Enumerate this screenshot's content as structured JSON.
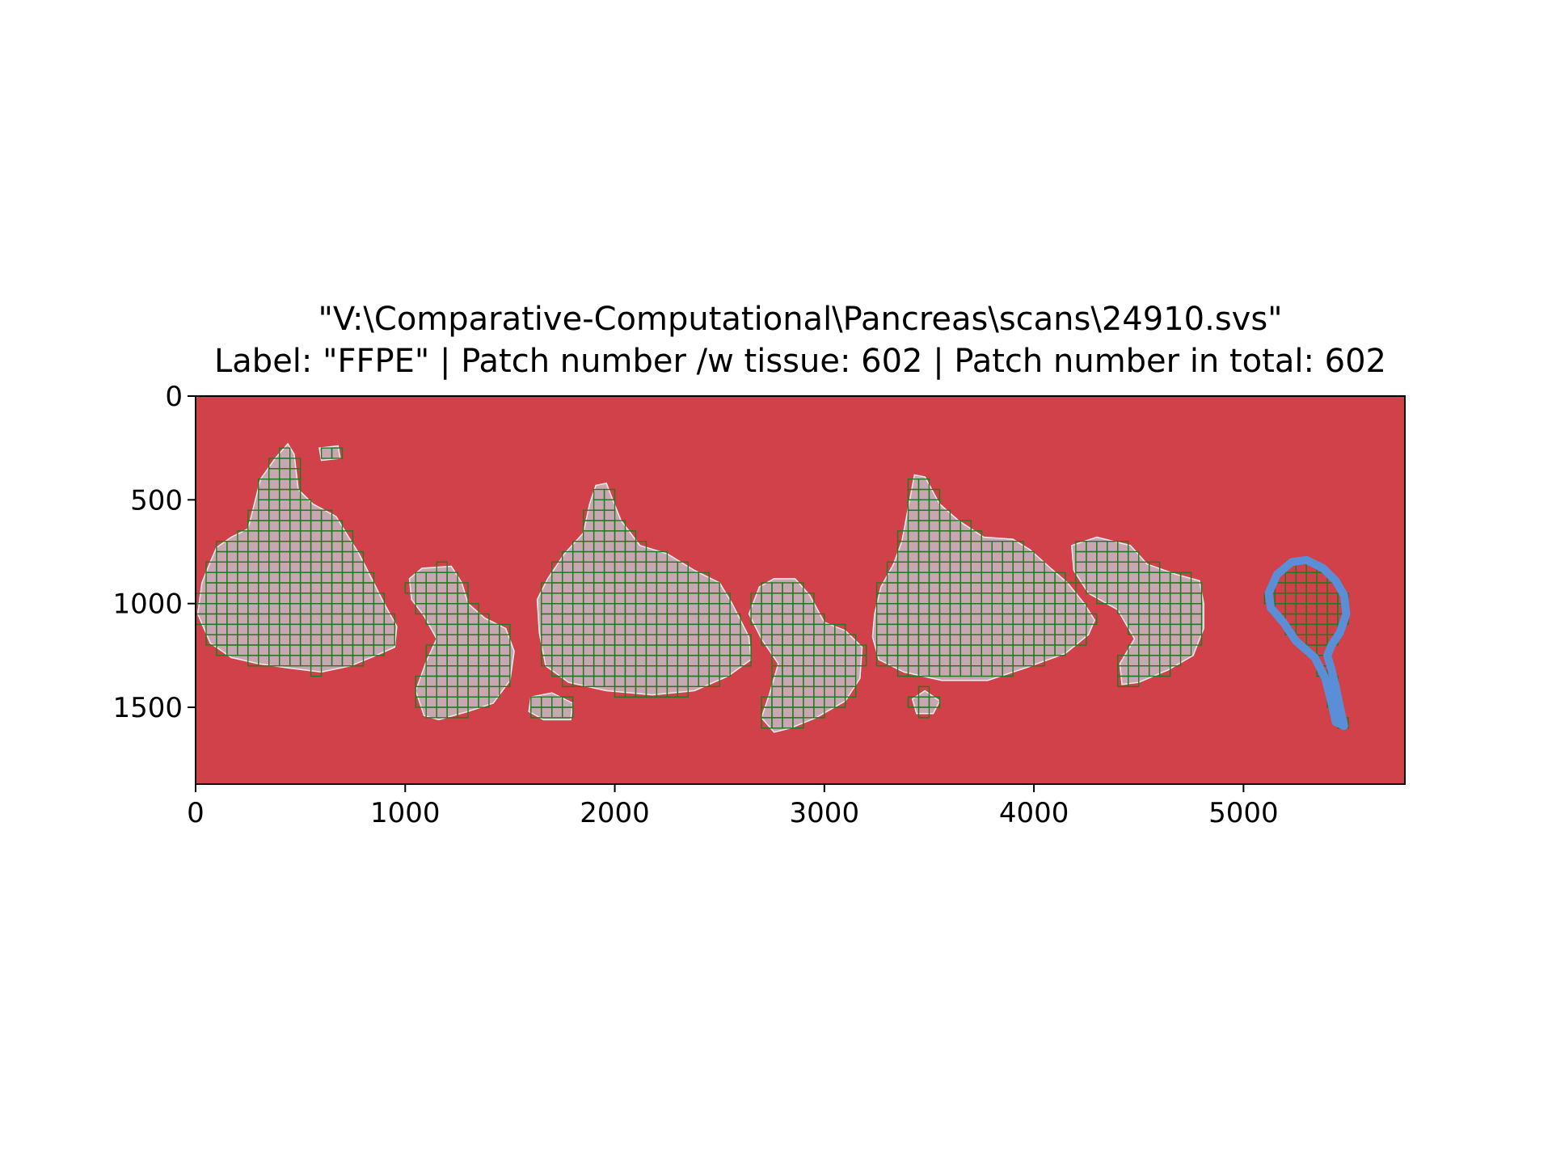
{
  "chart_data": {
    "type": "heatmap",
    "title_lines": [
      "\"V:\\Comparative-Computational\\Pancreas\\scans\\24910.svs\"",
      "Label: \"FFPE\" | Patch number /w tissue: 602 | Patch number in total: 602"
    ],
    "xlim": [
      0,
      5770
    ],
    "ylim": [
      1870,
      0
    ],
    "x_ticks": [
      0,
      1000,
      2000,
      3000,
      4000,
      5000
    ],
    "y_ticks": [
      0,
      500,
      1000,
      1500
    ],
    "xlabel": "",
    "ylabel": "",
    "grid": false,
    "patch_size": 50,
    "patches_with_tissue": 602,
    "patches_total": 602,
    "colors": {
      "background": "#d0414a",
      "tissue": "#c9a7b2",
      "tissue_edge": "#eeeeee",
      "patch_outline": "#1f7a1f",
      "marker_ink": "#5a8fd8",
      "axis": "#000000"
    },
    "tissue_regions": [
      {
        "name": "section-1",
        "points": [
          [
            70,
            800
          ],
          [
            100,
            730
          ],
          [
            170,
            680
          ],
          [
            250,
            640
          ],
          [
            280,
            520
          ],
          [
            310,
            400
          ],
          [
            380,
            300
          ],
          [
            440,
            230
          ],
          [
            470,
            280
          ],
          [
            490,
            450
          ],
          [
            560,
            520
          ],
          [
            670,
            580
          ],
          [
            730,
            680
          ],
          [
            780,
            760
          ],
          [
            840,
            880
          ],
          [
            900,
            1000
          ],
          [
            960,
            1110
          ],
          [
            950,
            1210
          ],
          [
            860,
            1250
          ],
          [
            740,
            1300
          ],
          [
            600,
            1330
          ],
          [
            440,
            1310
          ],
          [
            300,
            1290
          ],
          [
            170,
            1260
          ],
          [
            70,
            1190
          ],
          [
            10,
            1050
          ],
          [
            30,
            900
          ]
        ]
      },
      {
        "name": "section-1-nub",
        "points": [
          [
            590,
            250
          ],
          [
            680,
            240
          ],
          [
            690,
            300
          ],
          [
            600,
            310
          ]
        ]
      },
      {
        "name": "section-2",
        "points": [
          [
            1020,
            880
          ],
          [
            1080,
            830
          ],
          [
            1220,
            820
          ],
          [
            1270,
            900
          ],
          [
            1300,
            1000
          ],
          [
            1380,
            1070
          ],
          [
            1480,
            1120
          ],
          [
            1520,
            1230
          ],
          [
            1500,
            1370
          ],
          [
            1420,
            1480
          ],
          [
            1300,
            1520
          ],
          [
            1160,
            1560
          ],
          [
            1090,
            1540
          ],
          [
            1050,
            1420
          ],
          [
            1100,
            1280
          ],
          [
            1150,
            1170
          ],
          [
            1090,
            1060
          ],
          [
            1030,
            980
          ]
        ]
      },
      {
        "name": "section-3",
        "points": [
          [
            1630,
            980
          ],
          [
            1680,
            880
          ],
          [
            1760,
            760
          ],
          [
            1850,
            660
          ],
          [
            1880,
            520
          ],
          [
            1910,
            430
          ],
          [
            1960,
            420
          ],
          [
            1990,
            500
          ],
          [
            2030,
            600
          ],
          [
            2120,
            720
          ],
          [
            2250,
            760
          ],
          [
            2380,
            840
          ],
          [
            2500,
            900
          ],
          [
            2560,
            1000
          ],
          [
            2640,
            1160
          ],
          [
            2650,
            1270
          ],
          [
            2540,
            1350
          ],
          [
            2380,
            1420
          ],
          [
            2180,
            1440
          ],
          [
            1960,
            1420
          ],
          [
            1780,
            1380
          ],
          [
            1670,
            1300
          ],
          [
            1640,
            1140
          ]
        ]
      },
      {
        "name": "section-3-satellite",
        "points": [
          [
            1600,
            1450
          ],
          [
            1700,
            1430
          ],
          [
            1800,
            1480
          ],
          [
            1790,
            1560
          ],
          [
            1660,
            1560
          ],
          [
            1590,
            1520
          ]
        ]
      },
      {
        "name": "section-4",
        "points": [
          [
            2640,
            1050
          ],
          [
            2690,
            920
          ],
          [
            2760,
            880
          ],
          [
            2860,
            880
          ],
          [
            2930,
            960
          ],
          [
            3000,
            1090
          ],
          [
            3100,
            1130
          ],
          [
            3180,
            1210
          ],
          [
            3170,
            1360
          ],
          [
            3100,
            1470
          ],
          [
            2960,
            1550
          ],
          [
            2840,
            1600
          ],
          [
            2760,
            1620
          ],
          [
            2700,
            1550
          ],
          [
            2740,
            1430
          ],
          [
            2780,
            1290
          ],
          [
            2700,
            1170
          ]
        ]
      },
      {
        "name": "section-5",
        "points": [
          [
            3240,
            1050
          ],
          [
            3270,
            920
          ],
          [
            3330,
            810
          ],
          [
            3370,
            700
          ],
          [
            3400,
            540
          ],
          [
            3430,
            380
          ],
          [
            3480,
            390
          ],
          [
            3550,
            520
          ],
          [
            3640,
            600
          ],
          [
            3760,
            680
          ],
          [
            3900,
            690
          ],
          [
            3980,
            740
          ],
          [
            4080,
            830
          ],
          [
            4160,
            900
          ],
          [
            4240,
            1000
          ],
          [
            4290,
            1080
          ],
          [
            4260,
            1150
          ],
          [
            4150,
            1240
          ],
          [
            3960,
            1310
          ],
          [
            3780,
            1370
          ],
          [
            3560,
            1370
          ],
          [
            3380,
            1330
          ],
          [
            3260,
            1270
          ],
          [
            3230,
            1160
          ]
        ]
      },
      {
        "name": "section-5-satellite",
        "points": [
          [
            3420,
            1460
          ],
          [
            3480,
            1420
          ],
          [
            3550,
            1470
          ],
          [
            3520,
            1530
          ],
          [
            3440,
            1530
          ]
        ]
      },
      {
        "name": "section-6",
        "points": [
          [
            4180,
            720
          ],
          [
            4300,
            680
          ],
          [
            4460,
            720
          ],
          [
            4540,
            810
          ],
          [
            4680,
            860
          ],
          [
            4790,
            890
          ],
          [
            4810,
            1000
          ],
          [
            4810,
            1120
          ],
          [
            4760,
            1250
          ],
          [
            4640,
            1320
          ],
          [
            4500,
            1380
          ],
          [
            4420,
            1390
          ],
          [
            4410,
            1290
          ],
          [
            4480,
            1170
          ],
          [
            4400,
            1030
          ],
          [
            4260,
            950
          ],
          [
            4190,
            840
          ]
        ]
      }
    ],
    "marker_loop": [
      [
        5120,
        950
      ],
      [
        5160,
        860
      ],
      [
        5230,
        800
      ],
      [
        5300,
        790
      ],
      [
        5380,
        830
      ],
      [
        5440,
        890
      ],
      [
        5480,
        960
      ],
      [
        5490,
        1050
      ],
      [
        5460,
        1140
      ],
      [
        5420,
        1200
      ],
      [
        5400,
        1250
      ],
      [
        5420,
        1320
      ],
      [
        5440,
        1400
      ],
      [
        5460,
        1500
      ],
      [
        5480,
        1590
      ],
      [
        5440,
        1570
      ],
      [
        5420,
        1480
      ],
      [
        5390,
        1360
      ],
      [
        5340,
        1260
      ],
      [
        5250,
        1180
      ],
      [
        5190,
        1090
      ],
      [
        5130,
        1020
      ]
    ]
  }
}
